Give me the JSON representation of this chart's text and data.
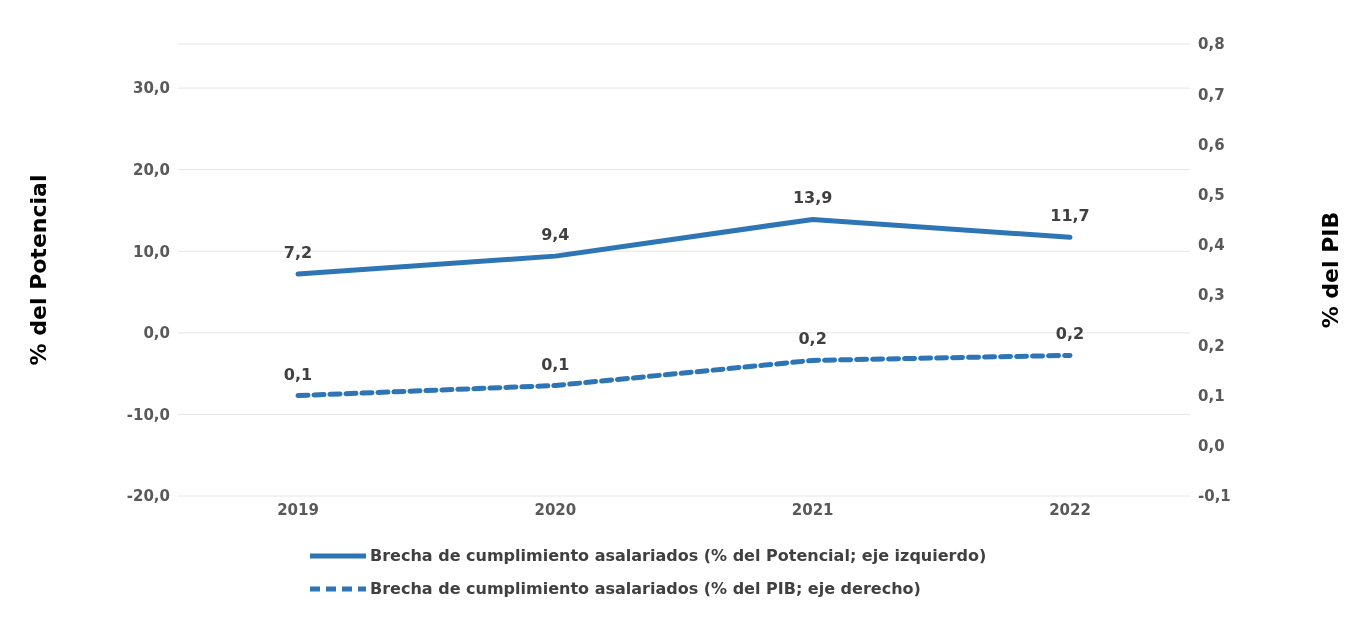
{
  "chart_data": {
    "type": "line",
    "categories": [
      "2019",
      "2020",
      "2021",
      "2022"
    ],
    "ylabel": "% del Potencial",
    "y2label": "% del PIB",
    "ylim": [
      -20,
      35.4
    ],
    "yticks": [
      {
        "value": -20,
        "label": "-20,0"
      },
      {
        "value": -10,
        "label": "-10,0"
      },
      {
        "value": 0,
        "label": "0,0"
      },
      {
        "value": 10,
        "label": "10,0"
      },
      {
        "value": 20,
        "label": "20,0"
      },
      {
        "value": 30,
        "label": "30,0"
      }
    ],
    "y2lim": [
      -0.1,
      0.8
    ],
    "y2ticks": [
      {
        "value": -0.1,
        "label": "-0,1"
      },
      {
        "value": 0,
        "label": "0,0"
      },
      {
        "value": 0.1,
        "label": "0,1"
      },
      {
        "value": 0.2,
        "label": "0,2"
      },
      {
        "value": 0.3,
        "label": "0,3"
      },
      {
        "value": 0.4,
        "label": "0,4"
      },
      {
        "value": 0.5,
        "label": "0,5"
      },
      {
        "value": 0.6,
        "label": "0,6"
      },
      {
        "value": 0.7,
        "label": "0,7"
      },
      {
        "value": 0.8,
        "label": "0,8"
      }
    ],
    "series": [
      {
        "name": "Brecha de cumplimiento asalariados (% del Potencial; eje izquierdo)",
        "color": "#2e75b6",
        "values": [
          7.2,
          9.4,
          13.9,
          11.7
        ],
        "value_labels": [
          "7,2",
          "9,4",
          "13,9",
          "11,7"
        ],
        "line_style": "solid"
      },
      {
        "name": "Brecha de cumplimiento asalariados (% del PIB; eje derecho)",
        "color": "#2e75b6",
        "values": [
          0.1,
          0.12,
          0.17,
          0.18
        ],
        "value_labels": [
          "0,1",
          "0,1",
          "0,2",
          "0,2"
        ],
        "line_style": "dashed",
        "axis": "y2"
      }
    ],
    "grid": "y",
    "legend": "bottom",
    "marker": "none"
  }
}
